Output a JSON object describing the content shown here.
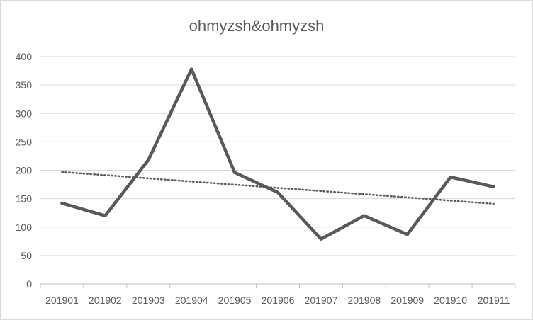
{
  "chart_data": {
    "type": "line",
    "title": "ohmyzsh&ohmyzsh",
    "categories": [
      "201901",
      "201902",
      "201903",
      "201904",
      "201905",
      "201906",
      "201907",
      "201908",
      "201909",
      "201910",
      "201911"
    ],
    "series": [
      {
        "values": [
          142,
          120,
          218,
          378,
          196,
          161,
          79,
          120,
          87,
          188,
          171
        ],
        "color": "#595959"
      }
    ],
    "trendline": {
      "type": "linear",
      "style": "dotted",
      "start": 197,
      "end": 141,
      "color": "#595959"
    },
    "ylim": [
      0,
      400
    ],
    "yticks": [
      0,
      50,
      100,
      150,
      200,
      250,
      300,
      350,
      400
    ],
    "grid": true,
    "legend": "none"
  }
}
